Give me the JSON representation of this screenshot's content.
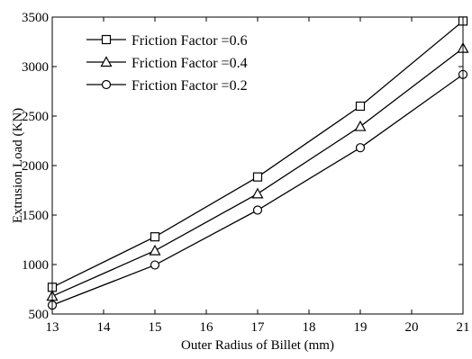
{
  "chart_data": {
    "type": "line",
    "title": "",
    "xlabel": "Outer Radius of Billet (mm)",
    "ylabel": "Extrusion Load (KN)",
    "xlim": [
      13,
      21
    ],
    "ylim": [
      500,
      3500
    ],
    "x": [
      13,
      15,
      17,
      19,
      21
    ],
    "xticks": [
      "13",
      "14",
      "15",
      "16",
      "17",
      "18",
      "19",
      "20",
      "21"
    ],
    "yticks": [
      "500",
      "1000",
      "1500",
      "2000",
      "2500",
      "3000",
      "3500"
    ],
    "grid": false,
    "legend_position": "top-left",
    "series": [
      {
        "name": "Friction Factor =0.6",
        "marker": "square",
        "values": [
          770,
          1280,
          1885,
          2600,
          3460
        ]
      },
      {
        "name": "Friction Factor =0.4",
        "marker": "triangle",
        "values": [
          680,
          1140,
          1715,
          2395,
          3185
        ]
      },
      {
        "name": "Friction Factor =0.2",
        "marker": "circle",
        "values": [
          590,
          995,
          1550,
          2180,
          2920
        ]
      }
    ],
    "line_color": "#000000"
  }
}
